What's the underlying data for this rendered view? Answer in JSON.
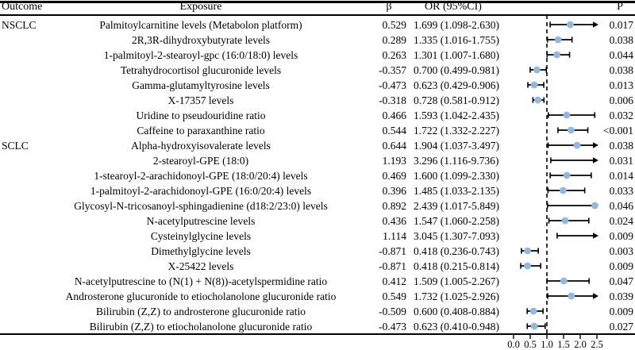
{
  "colors": {
    "marker_fill": "#92b8db",
    "ci_line": "#000000",
    "reference_line": "#000000",
    "text": "#000000",
    "background": "#ffffff"
  },
  "chart_data": {
    "type": "scatter",
    "variant": "forest-plot",
    "title": "",
    "xlabel": "",
    "ylabel": "",
    "legend": "none",
    "grid": false,
    "x_axis": {
      "ticks": [
        0.0,
        0.5,
        1.0,
        1.5,
        2.0,
        2.5
      ],
      "tick_labels": [
        "0.0",
        "0.5",
        "1.0",
        "1.5",
        "2.0",
        "2.5"
      ],
      "range_shown": [
        0.0,
        2.5
      ],
      "reference_line": 1.0,
      "clip_max": 2.5,
      "note": "confidence intervals exceeding 2.5 are drawn with right arrows"
    },
    "columns": {
      "outcome": "Outcome",
      "exposure": "Exposure",
      "beta": "β",
      "or_ci": "OR (95%CI)",
      "p": "P"
    },
    "rows": [
      {
        "outcome": "NSCLC",
        "exposure": "Palmitoylcarnitine levels (Metabolon platform)",
        "beta": "0.529",
        "or_ci": "1.699 (1.098-2.630)",
        "or": 1.699,
        "ci_low": 1.098,
        "ci_high": 2.63,
        "p": "0.017"
      },
      {
        "outcome": "",
        "exposure": "2R,3R-dihydroxybutyrate levels",
        "beta": "0.289",
        "or_ci": "1.335 (1.016-1.755)",
        "or": 1.335,
        "ci_low": 1.016,
        "ci_high": 1.755,
        "p": "0.038"
      },
      {
        "outcome": "",
        "exposure": "1-palmitoyl-2-stearoyl-gpc (16:0/18:0) levels",
        "beta": "0.263",
        "or_ci": "1.301 (1.007-1.680)",
        "or": 1.301,
        "ci_low": 1.007,
        "ci_high": 1.68,
        "p": "0.044"
      },
      {
        "outcome": "",
        "exposure": "Tetrahydrocortisol glucuronide levels",
        "beta": "-0.357",
        "or_ci": "0.700 (0.499-0.981)",
        "or": 0.7,
        "ci_low": 0.499,
        "ci_high": 0.981,
        "p": "0.038"
      },
      {
        "outcome": "",
        "exposure": "Gamma-glutamyltyrosine levels",
        "beta": "-0.473",
        "or_ci": "0.623 (0.429-0.906)",
        "or": 0.623,
        "ci_low": 0.429,
        "ci_high": 0.906,
        "p": "0.013"
      },
      {
        "outcome": "",
        "exposure": "X-17357 levels",
        "beta": "-0.318",
        "or_ci": "0.728 (0.581-0.912)",
        "or": 0.728,
        "ci_low": 0.581,
        "ci_high": 0.912,
        "p": "0.006"
      },
      {
        "outcome": "",
        "exposure": "Uridine to pseudouridine ratio",
        "beta": "0.466",
        "or_ci": "1.593 (1.042-2.435)",
        "or": 1.593,
        "ci_low": 1.042,
        "ci_high": 2.435,
        "p": "0.032"
      },
      {
        "outcome": "",
        "exposure": "Caffeine to paraxanthine ratio",
        "beta": "0.544",
        "or_ci": "1.722 (1.332-2.227)",
        "or": 1.722,
        "ci_low": 1.332,
        "ci_high": 2.227,
        "p": "<0.001"
      },
      {
        "outcome": "SCLC",
        "exposure": "Alpha-hydroxyisovalerate levels",
        "beta": "0.644",
        "or_ci": "1.904 (1.037-3.497)",
        "or": 1.904,
        "ci_low": 1.037,
        "ci_high": 3.497,
        "p": "0.038"
      },
      {
        "outcome": "",
        "exposure": "2-stearoyl-GPE (18:0)",
        "beta": "1.193",
        "or_ci": "3.296 (1.116-9.736)",
        "or": 3.296,
        "ci_low": 1.116,
        "ci_high": 9.736,
        "p": "0.031"
      },
      {
        "outcome": "",
        "exposure": "1-stearoyl-2-arachidonoyl-GPE (18:0/20:4) levels",
        "beta": "0.469",
        "or_ci": "1.600 (1.099-2.330)",
        "or": 1.6,
        "ci_low": 1.099,
        "ci_high": 2.33,
        "p": "0.014"
      },
      {
        "outcome": "",
        "exposure": "1-palmitoyl-2-arachidonoyl-GPE (16:0/20:4) levels",
        "beta": "0.396",
        "or_ci": "1.485 (1.033-2.135)",
        "or": 1.485,
        "ci_low": 1.033,
        "ci_high": 2.135,
        "p": "0.033"
      },
      {
        "outcome": "",
        "exposure": "Glycosyl-N-tricosanoyl-sphingadienine (d18:2/23:0) levels",
        "beta": "0.892",
        "or_ci": "2.439 (1.017-5.849)",
        "or": 2.439,
        "ci_low": 1.017,
        "ci_high": 5.849,
        "p": "0.046"
      },
      {
        "outcome": "",
        "exposure": "N-acetylputrescine levels",
        "beta": "0.436",
        "or_ci": "1.547 (1.060-2.258)",
        "or": 1.547,
        "ci_low": 1.06,
        "ci_high": 2.258,
        "p": "0.024"
      },
      {
        "outcome": "",
        "exposure": "Cysteinylglycine levels",
        "beta": "1.114",
        "or_ci": "3.045 (1.307-7.093)",
        "or": 3.045,
        "ci_low": 1.307,
        "ci_high": 7.093,
        "p": "0.009"
      },
      {
        "outcome": "",
        "exposure": "Dimethylglycine levels",
        "beta": "-0.871",
        "or_ci": "0.418 (0.236-0.743)",
        "or": 0.418,
        "ci_low": 0.236,
        "ci_high": 0.743,
        "p": "0.003"
      },
      {
        "outcome": "",
        "exposure": "X-25422 levels",
        "beta": "-0.871",
        "or_ci": "0.418 (0.215-0.814)",
        "or": 0.418,
        "ci_low": 0.215,
        "ci_high": 0.814,
        "p": "0.009"
      },
      {
        "outcome": "",
        "exposure": "N-acetylputrescine to (N(1) + N(8))-acetylspermidine ratio",
        "beta": "0.412",
        "or_ci": "1.509 (1.005-2.267)",
        "or": 1.509,
        "ci_low": 1.005,
        "ci_high": 2.267,
        "p": "0.047"
      },
      {
        "outcome": "",
        "exposure": "Androsterone glucuronide to etiocholanolone glucuronide ratio",
        "beta": "0.549",
        "or_ci": "1.732 (1.025-2.926)",
        "or": 1.732,
        "ci_low": 1.025,
        "ci_high": 2.926,
        "p": "0.039"
      },
      {
        "outcome": "",
        "exposure": "Bilirubin (Z,Z) to androsterone glucuronide ratio",
        "beta": "-0.509",
        "or_ci": "0.600 (0.408-0.884)",
        "or": 0.6,
        "ci_low": 0.408,
        "ci_high": 0.884,
        "p": "0.009"
      },
      {
        "outcome": "",
        "exposure": "Bilirubin (Z,Z) to etiocholanolone glucuronide ratio",
        "beta": "-0.473",
        "or_ci": "0.623 (0.410-0.948)",
        "or": 0.623,
        "ci_low": 0.41,
        "ci_high": 0.948,
        "p": "0.027"
      }
    ]
  }
}
